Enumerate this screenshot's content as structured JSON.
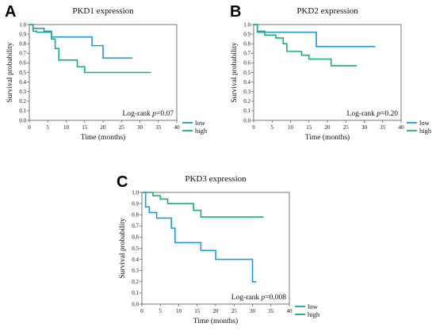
{
  "chart_data": [
    {
      "type": "line",
      "panel_letter": "A",
      "title": "PKD1 expression",
      "xlabel": "Time (months)",
      "ylabel": "Survival probability",
      "xlim": [
        0,
        40
      ],
      "ylim": [
        0.0,
        1.0
      ],
      "xticks": [
        0,
        5,
        10,
        15,
        20,
        25,
        30,
        35,
        40
      ],
      "yticks": [
        0.0,
        0.1,
        0.2,
        0.3,
        0.4,
        0.5,
        0.6,
        0.7,
        0.8,
        0.9,
        1.0
      ],
      "annotation": {
        "prefix": "Log-rank ",
        "p": "p",
        "value": "=0.07"
      },
      "legend_position": "bottom-right-outside",
      "series": [
        {
          "name": "low",
          "color": "#1e9ad6",
          "x": [
            0,
            1,
            1,
            4,
            4,
            6,
            6,
            17,
            17,
            20,
            20,
            28
          ],
          "y": [
            1.0,
            1.0,
            0.96,
            0.96,
            0.93,
            0.93,
            0.87,
            0.87,
            0.78,
            0.78,
            0.65,
            0.65
          ]
        },
        {
          "name": "high",
          "color": "#15b07a",
          "x": [
            0,
            1,
            1,
            2,
            2,
            6,
            6,
            7,
            7,
            8,
            8,
            13,
            13,
            15,
            15,
            33
          ],
          "y": [
            1.0,
            1.0,
            0.93,
            0.93,
            0.92,
            0.92,
            0.85,
            0.85,
            0.75,
            0.75,
            0.63,
            0.63,
            0.56,
            0.56,
            0.5,
            0.5
          ]
        }
      ]
    },
    {
      "type": "line",
      "panel_letter": "B",
      "title": "PKD2 expression",
      "xlabel": "Time (months)",
      "ylabel": "Survival probability",
      "xlim": [
        0,
        40
      ],
      "ylim": [
        0.0,
        1.0
      ],
      "xticks": [
        0,
        5,
        10,
        15,
        20,
        25,
        30,
        35,
        40
      ],
      "yticks": [
        0.0,
        0.1,
        0.2,
        0.3,
        0.4,
        0.5,
        0.6,
        0.7,
        0.8,
        0.9,
        1.0
      ],
      "annotation": {
        "prefix": "Log-rank ",
        "p": "p",
        "value": "=0.20"
      },
      "legend_position": "bottom-right-outside",
      "series": [
        {
          "name": "low",
          "color": "#1e9ad6",
          "x": [
            0,
            1,
            1,
            17,
            17,
            33
          ],
          "y": [
            1.0,
            1.0,
            0.92,
            0.92,
            0.77,
            0.77
          ]
        },
        {
          "name": "high",
          "color": "#15b07a",
          "x": [
            0,
            1,
            1,
            3,
            3,
            6,
            6,
            8,
            8,
            9,
            9,
            13,
            13,
            15,
            15,
            21,
            21,
            28
          ],
          "y": [
            1.0,
            1.0,
            0.93,
            0.93,
            0.89,
            0.89,
            0.86,
            0.86,
            0.8,
            0.8,
            0.72,
            0.72,
            0.68,
            0.68,
            0.64,
            0.64,
            0.57,
            0.57
          ]
        }
      ]
    },
    {
      "type": "line",
      "panel_letter": "C",
      "title": "PKD3 expression",
      "xlabel": "Time (months)",
      "ylabel": "Survival probability",
      "xlim": [
        0,
        40
      ],
      "ylim": [
        0.0,
        1.0
      ],
      "xticks": [
        0,
        5,
        10,
        15,
        20,
        25,
        30,
        35,
        40
      ],
      "yticks": [
        0.0,
        0.1,
        0.2,
        0.3,
        0.4,
        0.5,
        0.6,
        0.7,
        0.8,
        0.9,
        1.0
      ],
      "annotation": {
        "prefix": "Log-rank ",
        "p": "p",
        "value": "=0.008"
      },
      "legend_position": "bottom-right-outside",
      "series": [
        {
          "name": "low",
          "color": "#1e9ad6",
          "x": [
            0,
            1,
            1,
            2,
            2,
            4,
            4,
            8,
            8,
            9,
            9,
            16,
            16,
            20,
            20,
            30,
            30,
            31
          ],
          "y": [
            1.0,
            1.0,
            0.87,
            0.87,
            0.82,
            0.82,
            0.77,
            0.77,
            0.68,
            0.68,
            0.55,
            0.55,
            0.48,
            0.48,
            0.4,
            0.4,
            0.2,
            0.2
          ]
        },
        {
          "name": "high",
          "color": "#15b07a",
          "x": [
            0,
            3,
            3,
            5,
            5,
            7,
            7,
            14,
            14,
            16,
            16,
            33
          ],
          "y": [
            1.0,
            1.0,
            0.97,
            0.97,
            0.94,
            0.94,
            0.9,
            0.9,
            0.84,
            0.84,
            0.78,
            0.78
          ]
        }
      ]
    }
  ]
}
